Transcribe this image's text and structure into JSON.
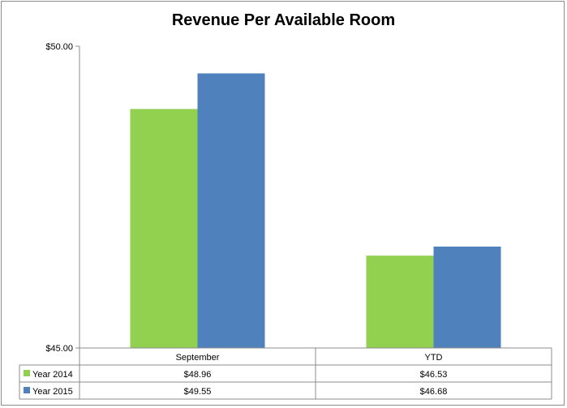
{
  "chart_data": {
    "type": "bar",
    "title": "Revenue Per Available Room",
    "categories": [
      "September",
      "YTD"
    ],
    "series": [
      {
        "name": "Year 2014",
        "color": "#92d050",
        "values": [
          48.96,
          46.53
        ],
        "labels": [
          "$48.96",
          "$46.53"
        ]
      },
      {
        "name": "Year 2015",
        "color": "#4f81bd",
        "values": [
          49.55,
          46.68
        ],
        "labels": [
          "$49.55",
          "$46.68"
        ]
      }
    ],
    "y_ticks": [
      {
        "value": 50,
        "label": "$50.00"
      },
      {
        "value": 45,
        "label": "$45.00"
      }
    ],
    "ylim": [
      45,
      50
    ],
    "grid": false,
    "legend": "data-table"
  }
}
